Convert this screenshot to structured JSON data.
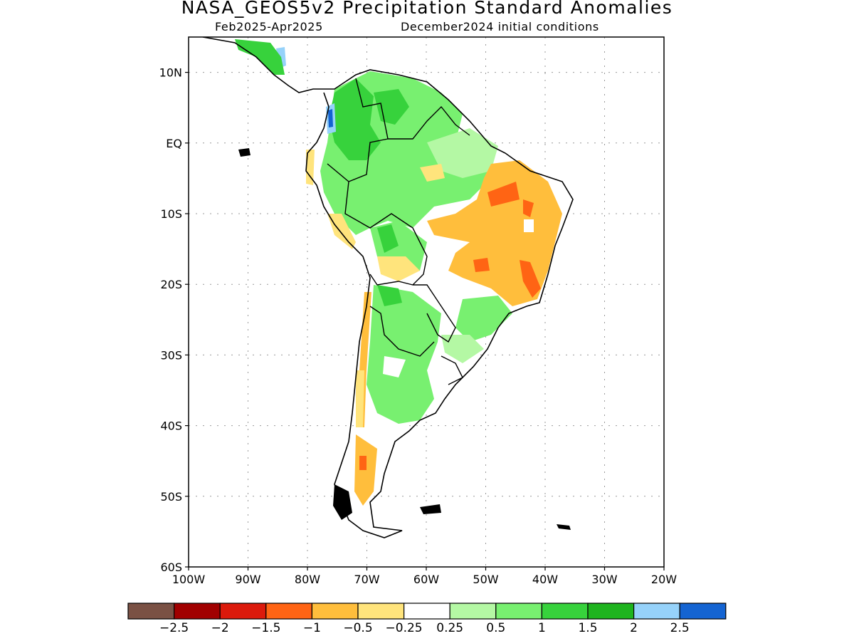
{
  "title": "NASA_GEOS5v2 Precipitation Standard Anomalies",
  "period": "Feb2025-Apr2025",
  "initial_conditions": "December2024 initial conditions",
  "map": {
    "lat_labels": [
      "10N",
      "EQ",
      "10S",
      "20S",
      "30S",
      "40S",
      "50S",
      "60S"
    ],
    "lon_labels": [
      "100W",
      "90W",
      "80W",
      "70W",
      "60W",
      "50W",
      "40W",
      "30W",
      "20W"
    ],
    "extent": {
      "lon_min": -100,
      "lon_max": -20,
      "lat_min": -60,
      "lat_max": 15
    },
    "grid": true,
    "coastline_color": "#000000"
  },
  "colorbar": {
    "colors": [
      "#7a5144",
      "#a10000",
      "#dc1a0c",
      "#ff6414",
      "#ffbe3c",
      "#ffe47c",
      "#ffffff",
      "#b4f8a4",
      "#78f070",
      "#37d23c",
      "#1eb41e",
      "#96d2fa",
      "#1464d2"
    ],
    "labels": [
      "-2.5",
      "-2",
      "-1.5",
      "-1",
      "-0.5",
      "-0.25",
      "0.25",
      "0.5",
      "1",
      "1.5",
      "2",
      "2.5"
    ]
  },
  "anomaly_regions": [
    {
      "name": "Colombia-Venezuela-Amazon",
      "category": "1 to 1.5",
      "color": "#37d23c"
    },
    {
      "name": "Northern Amazon",
      "category": "0.5 to 1",
      "color": "#78f070"
    },
    {
      "name": "Northeast Brazil",
      "category": "-1 to -0.5",
      "color": "#ffbe3c"
    },
    {
      "name": "Central-East Brazil core",
      "category": "-1.5 to -1",
      "color": "#ff6414"
    },
    {
      "name": "Paraguay-Northern Argentina",
      "category": "0.5 to 1",
      "color": "#78f070"
    },
    {
      "name": "Chilean coast and Patagonia",
      "category": "-0.5 to -0.25",
      "color": "#ffe47c"
    },
    {
      "name": "Western Colombia",
      "category": "2.5 and above",
      "color": "#1464d2"
    }
  ]
}
